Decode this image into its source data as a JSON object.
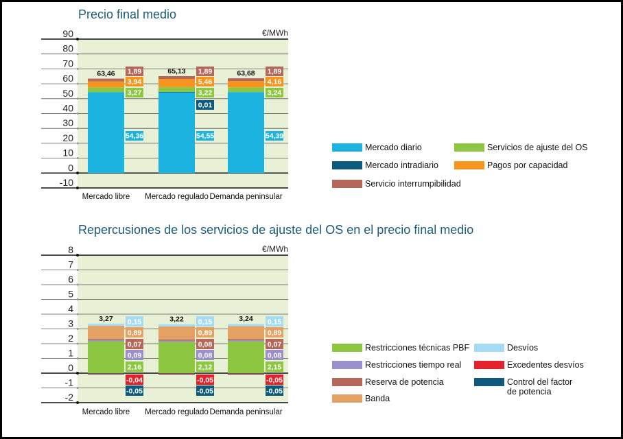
{
  "chart_data": [
    {
      "type": "bar",
      "stacked": true,
      "title": "Precio final medio",
      "unit": "€/MWh",
      "ylim": [
        -10,
        90
      ],
      "yticks": [
        90,
        80,
        70,
        60,
        50,
        40,
        30,
        20,
        10,
        0,
        -10
      ],
      "grid": true,
      "legend_position": "right",
      "categories": [
        "Mercado libre",
        "Mercado regulado",
        "Demanda peninsular"
      ],
      "totals": [
        "63,46",
        "65,13",
        "63,68"
      ],
      "series": [
        {
          "name": "Mercado diario",
          "color": "#1cb3e0",
          "values": [
            54.36,
            54.55,
            54.39
          ],
          "labels": [
            "54,36",
            "54,55",
            "54,39"
          ]
        },
        {
          "name": "Mercado intradiario",
          "color": "#0e5a7c",
          "values": [
            null,
            0.01,
            null
          ],
          "labels": [
            null,
            "0,01",
            null
          ]
        },
        {
          "name": "Servicios de ajuste del OS",
          "color": "#8dc641",
          "values": [
            3.27,
            3.22,
            3.24
          ],
          "labels": [
            "3,27",
            "3,22",
            "3,24"
          ]
        },
        {
          "name": "Pagos por capacidad",
          "color": "#f7941d",
          "values": [
            3.94,
            5.46,
            4.16
          ],
          "labels": [
            "3,94",
            "5,46",
            "4,16"
          ]
        },
        {
          "name": "Servicio interrumpibilidad",
          "color": "#b5675a",
          "values": [
            1.89,
            1.89,
            1.89
          ],
          "labels": [
            "1,89",
            "1,89",
            "1,89"
          ]
        }
      ]
    },
    {
      "type": "bar",
      "stacked": true,
      "title": "Repercusiones de los servicios de ajuste del OS en el precio final medio",
      "unit": "€/MWh",
      "ylim": [
        -2,
        8
      ],
      "yticks": [
        8,
        7,
        6,
        5,
        4,
        3,
        2,
        1,
        0,
        -1,
        -2
      ],
      "grid": true,
      "legend_position": "right",
      "categories": [
        "Mercado libre",
        "Mercado regulado",
        "Demanda peninsular"
      ],
      "totals": [
        "3,27",
        "3,22",
        "3,24"
      ],
      "series": [
        {
          "name": "Restricciones técnicas PBF",
          "color": "#8dc641",
          "values": [
            2.16,
            2.12,
            2.15
          ],
          "labels": [
            "2,16",
            "2,12",
            "2,15"
          ]
        },
        {
          "name": "Restricciones tiempo real",
          "color": "#9a8fca",
          "values": [
            0.09,
            0.08,
            0.08
          ],
          "labels": [
            "0,09",
            "0,08",
            "0,08"
          ]
        },
        {
          "name": "Reserva de potencia",
          "color": "#b5675a",
          "values": [
            0.07,
            0.08,
            0.07
          ],
          "labels": [
            "0,07",
            "0,08",
            "0,07"
          ]
        },
        {
          "name": "Banda",
          "color": "#e3a263",
          "values": [
            0.89,
            0.89,
            0.89
          ],
          "labels": [
            "0,89",
            "0,89",
            "0,89"
          ]
        },
        {
          "name": "Desvíos",
          "color": "#a5dcf3",
          "values": [
            0.15,
            0.15,
            0.15
          ],
          "labels": [
            "0,15",
            "0,15",
            "0,15"
          ]
        },
        {
          "name": "Excedentes desvíos",
          "color": "#e4222b",
          "values": [
            -0.04,
            -0.05,
            -0.05
          ],
          "labels": [
            "-0,04",
            "-0,05",
            "-0,05"
          ]
        },
        {
          "name": "Control del factor de potencia",
          "name_lines": [
            "Control del factor",
            "de potencia"
          ],
          "color": "#0e5a7c",
          "values": [
            -0.05,
            -0.05,
            -0.05
          ],
          "labels": [
            "-0,05",
            "-0,05",
            "-0,05"
          ]
        }
      ]
    }
  ],
  "colors": {
    "plot_background": "#e8f0d6",
    "title": "#1d5b79"
  }
}
